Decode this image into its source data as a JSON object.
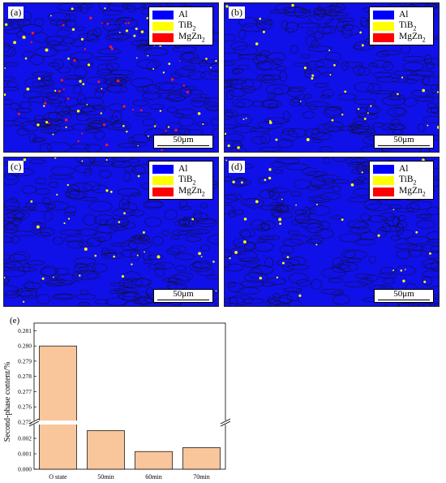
{
  "panels": [
    {
      "label": "(a)",
      "scale_label": "50μm"
    },
    {
      "label": "(b)",
      "scale_label": "50μm"
    },
    {
      "label": "(c)",
      "scale_label": "50μm"
    },
    {
      "label": "(d)",
      "scale_label": "50μm"
    }
  ],
  "legend": [
    {
      "label": "Al",
      "color": "#0000ff"
    },
    {
      "label": "TiB",
      "sub": "2",
      "color": "#ffff00"
    },
    {
      "label": "MgZn",
      "sub": "2",
      "color": "#ff0000"
    }
  ],
  "chart_data": {
    "type": "bar",
    "panel_label": "(e)",
    "categories": [
      "O state",
      "50min",
      "60min",
      "70min"
    ],
    "values": [
      0.28,
      0.0025,
      0.00115,
      0.0014
    ],
    "ylabel": "Second-phase content/%",
    "y_axis_break": true,
    "ylim_lower": [
      0.0,
      0.003
    ],
    "ylim_upper": [
      0.275,
      0.2815
    ],
    "yticks_lower": [
      "0.000",
      "0.001",
      "0.002"
    ],
    "yticks_upper": [
      "0.275",
      "0.276",
      "0.277",
      "0.278",
      "0.279",
      "0.280",
      "0.281"
    ],
    "bar_color": "#f9c59a",
    "grid": false
  }
}
